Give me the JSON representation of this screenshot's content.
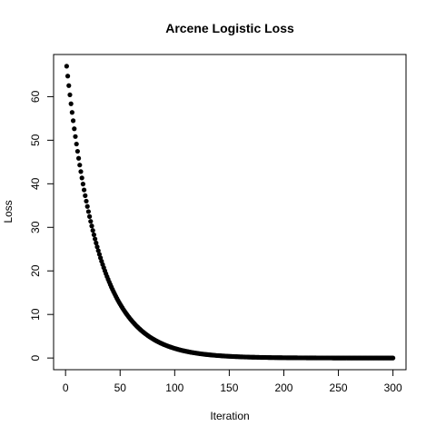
{
  "chart_data": {
    "type": "scatter",
    "title": "Arcene Logistic Loss",
    "x_label": "Iteration",
    "y_label": "Loss",
    "xlim": [
      -10.96,
      311.96
    ],
    "ylim": [
      -2.68,
      69.68
    ],
    "xticks": [
      0,
      50,
      100,
      150,
      200,
      250,
      300
    ],
    "yticks": [
      0,
      10,
      20,
      30,
      40,
      50,
      60
    ],
    "grid": false,
    "series": [
      {
        "name": "Loss",
        "color": "#000000",
        "x": [
          1,
          2,
          3,
          4,
          5,
          6,
          7,
          8,
          9,
          10,
          11,
          12,
          13,
          14,
          15,
          16,
          17,
          18,
          19,
          20,
          21,
          22,
          23,
          24,
          25,
          26,
          27,
          28,
          29,
          30,
          31,
          32,
          33,
          34,
          35,
          36,
          37,
          38,
          39,
          40,
          41,
          42,
          43,
          44,
          45,
          46,
          47,
          48,
          49,
          50,
          51,
          52,
          53,
          54,
          55,
          56,
          57,
          58,
          59,
          60,
          61,
          62,
          63,
          64,
          65,
          66,
          67,
          68,
          69,
          70,
          71,
          72,
          73,
          74,
          75,
          76,
          77,
          78,
          79,
          80,
          81,
          82,
          83,
          84,
          85,
          86,
          87,
          88,
          89,
          90,
          91,
          92,
          93,
          94,
          95,
          96,
          97,
          98,
          99,
          100,
          101,
          102,
          103,
          104,
          105,
          106,
          107,
          108,
          109,
          110,
          111,
          112,
          113,
          114,
          115,
          116,
          117,
          118,
          119,
          120,
          121,
          122,
          123,
          124,
          125,
          126,
          127,
          128,
          129,
          130,
          131,
          132,
          133,
          134,
          135,
          136,
          137,
          138,
          139,
          140,
          141,
          142,
          143,
          144,
          145,
          146,
          147,
          148,
          149,
          150,
          151,
          152,
          153,
          154,
          155,
          156,
          157,
          158,
          159,
          160,
          161,
          162,
          163,
          164,
          165,
          166,
          167,
          168,
          169,
          170,
          171,
          172,
          173,
          174,
          175,
          176,
          177,
          178,
          179,
          180,
          181,
          182,
          183,
          184,
          185,
          186,
          187,
          188,
          189,
          190,
          191,
          192,
          193,
          194,
          195,
          196,
          197,
          198,
          199,
          200,
          201,
          202,
          203,
          204,
          205,
          206,
          207,
          208,
          209,
          210,
          211,
          212,
          213,
          214,
          215,
          216,
          217,
          218,
          219,
          220,
          221,
          222,
          223,
          224,
          225,
          226,
          227,
          228,
          229,
          230,
          231,
          232,
          233,
          234,
          235,
          236,
          237,
          238,
          239,
          240,
          241,
          242,
          243,
          244,
          245,
          246,
          247,
          248,
          249,
          250,
          251,
          252,
          253,
          254,
          255,
          256,
          257,
          258,
          259,
          260,
          261,
          262,
          263,
          264,
          265,
          266,
          267,
          268,
          269,
          270,
          271,
          272,
          273,
          274,
          275,
          276,
          277,
          278,
          279,
          280,
          281,
          282,
          283,
          284,
          285,
          286,
          287,
          288,
          289,
          290,
          291,
          292,
          293,
          294,
          295,
          296,
          297,
          298,
          299,
          300
        ],
        "values": [
          67.0,
          64.73,
          62.54,
          60.42,
          58.37,
          56.39,
          54.48,
          52.63,
          50.85,
          49.13,
          47.46,
          45.85,
          44.3,
          42.8,
          41.35,
          39.94,
          38.59,
          37.28,
          36.02,
          34.8,
          33.62,
          32.48,
          31.38,
          30.32,
          29.29,
          28.3,
          27.34,
          26.41,
          25.52,
          24.65,
          23.81,
          23.0,
          22.22,
          21.47,
          20.74,
          20.04,
          19.36,
          18.7,
          18.07,
          17.46,
          16.87,
          16.3,
          15.75,
          15.21,
          14.7,
          14.2,
          13.72,
          13.25,
          12.8,
          12.37,
          11.95,
          11.55,
          11.15,
          10.78,
          10.41,
          10.06,
          9.72,
          9.39,
          9.07,
          8.76,
          8.46,
          8.17,
          7.9,
          7.63,
          7.37,
          7.12,
          6.88,
          6.65,
          6.42,
          6.2,
          6.0,
          5.79,
          5.6,
          5.41,
          5.22,
          5.05,
          4.87,
          4.71,
          4.55,
          4.4,
          4.25,
          4.1,
          3.96,
          3.83,
          3.7,
          3.57,
          3.45,
          3.34,
          3.22,
          3.11,
          3.01,
          2.91,
          2.81,
          2.71,
          2.62,
          2.53,
          2.45,
          2.36,
          2.28,
          2.21,
          2.13,
          2.06,
          1.99,
          1.92,
          1.86,
          1.79,
          1.73,
          1.67,
          1.62,
          1.56,
          1.51,
          1.46,
          1.41,
          1.36,
          1.31,
          1.27,
          1.23,
          1.19,
          1.15,
          1.11,
          1.07,
          1.03,
          1.0,
          0.96,
          0.93,
          0.9,
          0.87,
          0.84,
          0.81,
          0.78,
          0.76,
          0.73,
          0.71,
          0.68,
          0.66,
          0.64,
          0.62,
          0.59,
          0.57,
          0.56,
          0.54,
          0.52,
          0.5,
          0.48,
          0.47,
          0.45,
          0.44,
          0.42,
          0.41,
          0.39,
          0.38,
          0.37,
          0.35,
          0.34,
          0.33,
          0.32,
          0.31,
          0.3,
          0.29,
          0.28,
          0.27,
          0.26,
          0.25,
          0.24,
          0.23,
          0.23,
          0.22,
          0.21,
          0.2,
          0.2,
          0.19,
          0.18,
          0.18,
          0.17,
          0.17,
          0.16,
          0.16,
          0.15,
          0.14,
          0.14,
          0.14,
          0.13,
          0.13,
          0.12,
          0.12,
          0.11,
          0.11,
          0.11,
          0.1,
          0.1,
          0.1,
          0.09,
          0.09,
          0.09,
          0.08,
          0.08,
          0.08,
          0.08,
          0.07,
          0.07,
          0.07,
          0.07,
          0.06,
          0.06,
          0.06,
          0.06,
          0.06,
          0.05,
          0.05,
          0.05,
          0.05,
          0.05,
          0.04,
          0.04,
          0.04,
          0.04,
          0.04,
          0.04,
          0.04,
          0.04,
          0.03,
          0.03,
          0.03,
          0.03,
          0.03,
          0.03,
          0.03,
          0.03,
          0.03,
          0.02,
          0.02,
          0.02,
          0.02,
          0.02,
          0.02,
          0.02,
          0.02,
          0.02,
          0.02,
          0.02,
          0.02,
          0.02,
          0.02,
          0.02,
          0.01,
          0.01,
          0.01,
          0.01,
          0.01,
          0.01,
          0.01,
          0.01,
          0.01,
          0.01,
          0.01,
          0.01,
          0.01,
          0.01,
          0.01,
          0.01,
          0.01,
          0.01,
          0.01,
          0.01,
          0.01,
          0.01,
          0.01,
          0.01,
          0.01,
          0.01,
          0.01,
          0.01,
          0.01,
          0.01,
          0.01,
          0,
          0,
          0,
          0,
          0,
          0,
          0,
          0,
          0,
          0,
          0,
          0,
          0,
          0,
          0,
          0,
          0,
          0,
          0,
          0,
          0,
          0,
          0,
          0,
          0
        ]
      }
    ]
  }
}
